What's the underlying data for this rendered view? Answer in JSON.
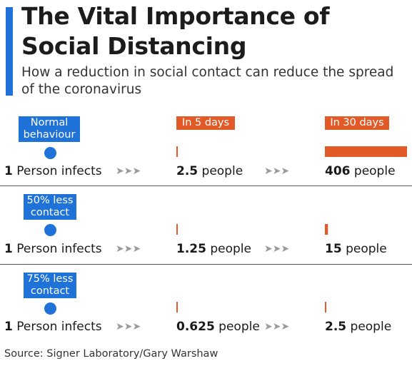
{
  "title": "The Vital Importance of Social Distancing",
  "subtitle": "How a reduction in social contact can reduce the spread of the coronavirus",
  "source": "Source: Signer Laboratory/Gary Warshaw",
  "headers": {
    "day5": "In 5 days",
    "day30": "In 30 days"
  },
  "colors": {
    "blue": "#1f72d8",
    "orange": "#e15a27",
    "arrow": "#9a9a9a"
  },
  "arrow_glyph": "➤➤➤",
  "chart_data": {
    "type": "bar",
    "categories": [
      "Normal behaviour",
      "50% less contact",
      "75% less contact"
    ],
    "series": [
      {
        "name": "In 5 days",
        "values": [
          2.5,
          1.25,
          0.625
        ]
      },
      {
        "name": "In 30 days",
        "values": [
          406,
          15,
          2.5
        ]
      }
    ]
  },
  "rows": [
    {
      "label": "Normal behaviour",
      "start_num": "1",
      "start_text": " Person infects",
      "d5_num": "2.5",
      "d5_text": " people",
      "d30_num": "406",
      "d30_text": " people"
    },
    {
      "label": "50% less contact",
      "start_num": "1",
      "start_text": " Person infects",
      "d5_num": "1.25",
      "d5_text": " people",
      "d30_num": "15",
      "d30_text": " people"
    },
    {
      "label": "75% less contact",
      "start_num": "1",
      "start_text": " Person infects",
      "d5_num": "0.625",
      "d5_text": " people",
      "d30_num": "2.5",
      "d30_text": " people"
    }
  ]
}
